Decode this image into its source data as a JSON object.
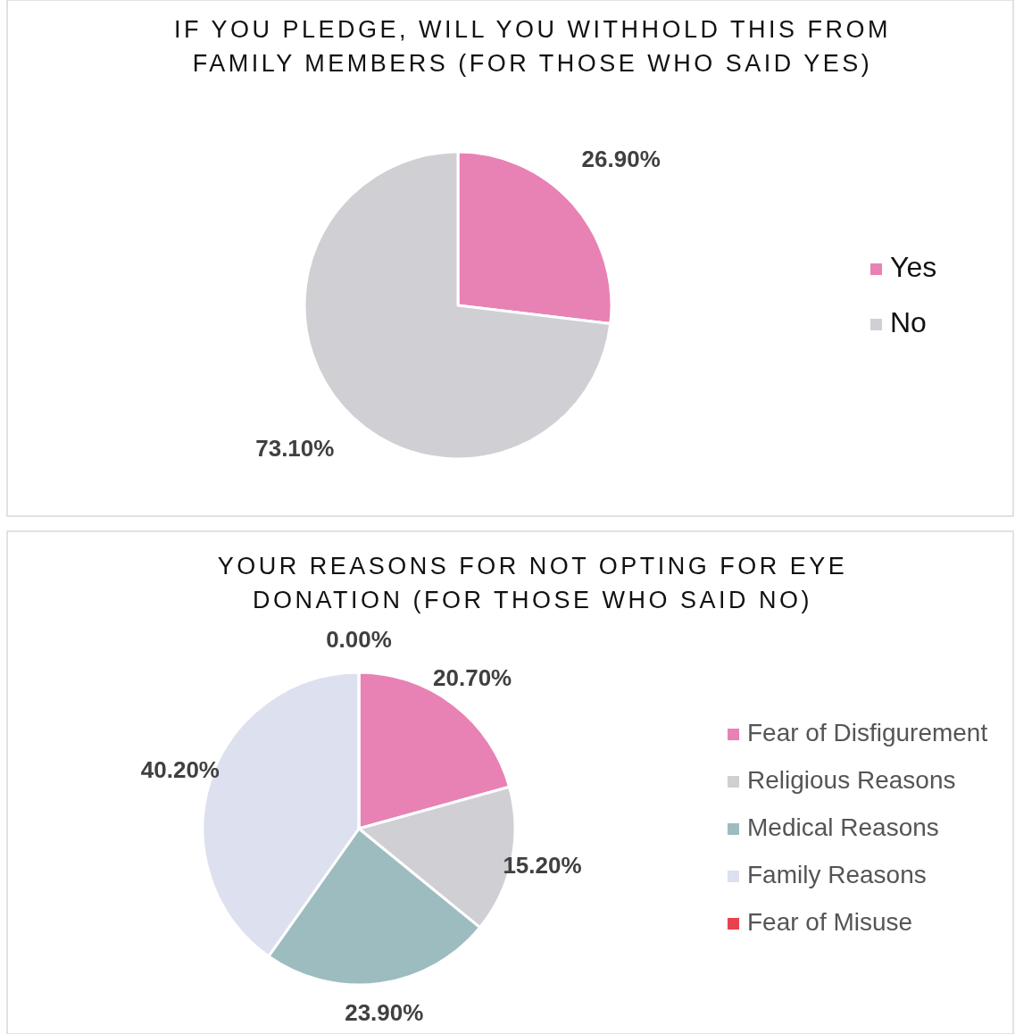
{
  "chart_data": [
    {
      "type": "pie",
      "title": "IF YOU PLEDGE, WILL YOU WITHHOLD THIS FROM FAMILY MEMBERS (FOR THOSE WHO SAID YES)",
      "categories": [
        "Yes",
        "No"
      ],
      "values": [
        26.9,
        73.1
      ],
      "colors": [
        "#e882b4",
        "#d0d0d4"
      ],
      "value_labels": [
        "26.90%",
        "73.10%"
      ],
      "legend": "right"
    },
    {
      "type": "pie",
      "title": "YOUR REASONS FOR NOT OPTING FOR EYE DONATION (FOR THOSE WHO SAID NO)",
      "categories": [
        "Fear of Disfigurement",
        "Religious Reasons",
        "Medical Reasons",
        "Family Reasons",
        "Fear of Misuse"
      ],
      "values": [
        20.7,
        15.2,
        23.9,
        40.2,
        0.0
      ],
      "colors": [
        "#e882b4",
        "#cfcfd4",
        "#9dbcc0",
        "#dde0ee",
        "#e8424f"
      ],
      "value_labels": [
        "20.70%",
        "15.20%",
        "23.90%",
        "40.20%",
        "0.00%"
      ],
      "legend": "right"
    }
  ]
}
